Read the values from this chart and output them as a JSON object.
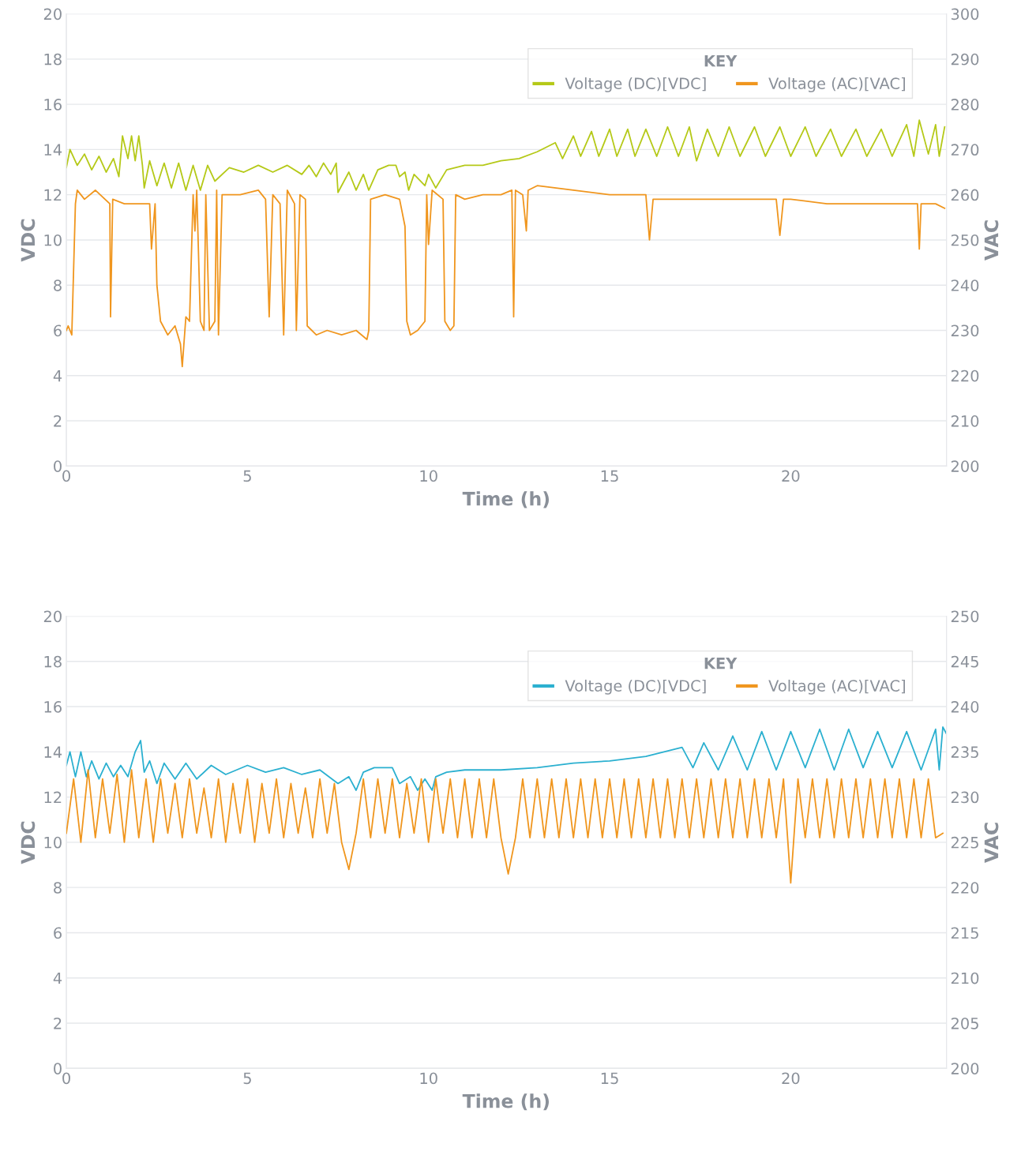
{
  "chart_data": [
    {
      "type": "line",
      "xlabel": "Time (h)",
      "ylabel": "VDC",
      "y2label": "VAC",
      "legend_title": "KEY",
      "legend": "top right",
      "grid": "y",
      "xlim": [
        0,
        24.3
      ],
      "xticks": [
        0,
        5,
        10,
        15,
        20
      ],
      "ylim": [
        0,
        20
      ],
      "yticks": [
        0,
        2,
        4,
        6,
        8,
        10,
        12,
        14,
        16,
        18,
        20
      ],
      "y2lim": [
        200,
        300
      ],
      "y2ticks": [
        200,
        210,
        220,
        230,
        240,
        250,
        260,
        270,
        280,
        290,
        300
      ],
      "series": [
        {
          "name": "Voltage (DC)[VDC]",
          "color": "#b5c918",
          "x": [
            0,
            0.1,
            0.3,
            0.5,
            0.7,
            0.9,
            1.1,
            1.3,
            1.45,
            1.55,
            1.7,
            1.8,
            1.9,
            2.0,
            2.1,
            2.15,
            2.3,
            2.5,
            2.7,
            2.9,
            3.1,
            3.3,
            3.5,
            3.7,
            3.9,
            4.1,
            4.5,
            4.9,
            5.3,
            5.7,
            6.1,
            6.5,
            6.7,
            6.9,
            7.1,
            7.3,
            7.45,
            7.5,
            7.8,
            8.0,
            8.2,
            8.35,
            8.6,
            8.9,
            9.1,
            9.2,
            9.35,
            9.45,
            9.6,
            9.9,
            10.0,
            10.2,
            10.5,
            11,
            11.5,
            12,
            12.5,
            13,
            13.5,
            13.7,
            14,
            14.2,
            14.5,
            14.7,
            15,
            15.2,
            15.5,
            15.7,
            16,
            16.3,
            16.6,
            16.9,
            17.2,
            17.4,
            17.7,
            18,
            18.3,
            18.6,
            19,
            19.3,
            19.7,
            20,
            20.4,
            20.7,
            21.1,
            21.4,
            21.8,
            22.1,
            22.5,
            22.8,
            23.2,
            23.4,
            23.55,
            23.8,
            24.0,
            24.1,
            24.25
          ],
          "values": [
            13.2,
            14.0,
            13.3,
            13.8,
            13.1,
            13.7,
            13.0,
            13.6,
            12.8,
            14.6,
            13.6,
            14.6,
            13.5,
            14.6,
            13.3,
            12.3,
            13.5,
            12.4,
            13.4,
            12.3,
            13.4,
            12.2,
            13.3,
            12.2,
            13.3,
            12.6,
            13.2,
            13.0,
            13.3,
            13.0,
            13.3,
            12.9,
            13.3,
            12.8,
            13.4,
            12.9,
            13.4,
            12.1,
            13.0,
            12.2,
            12.9,
            12.2,
            13.1,
            13.3,
            13.3,
            12.8,
            13.0,
            12.2,
            12.9,
            12.4,
            12.9,
            12.3,
            13.1,
            13.3,
            13.3,
            13.5,
            13.6,
            13.9,
            14.3,
            13.6,
            14.6,
            13.7,
            14.8,
            13.7,
            14.9,
            13.7,
            14.9,
            13.7,
            14.9,
            13.7,
            15.0,
            13.7,
            15.0,
            13.5,
            14.9,
            13.7,
            15.0,
            13.7,
            15.0,
            13.7,
            15.0,
            13.7,
            15.0,
            13.7,
            14.9,
            13.7,
            14.9,
            13.7,
            14.9,
            13.7,
            15.1,
            13.7,
            15.3,
            13.8,
            15.1,
            13.7,
            15.0
          ]
        },
        {
          "name": "Voltage (AC)[VAC]",
          "color": "#f0961e",
          "axis": "y2",
          "x": [
            0,
            0.05,
            0.15,
            0.25,
            0.3,
            0.5,
            0.8,
            1.2,
            1.22,
            1.28,
            1.6,
            2.0,
            2.3,
            2.35,
            2.45,
            2.5,
            2.6,
            2.8,
            3.0,
            3.15,
            3.2,
            3.3,
            3.4,
            3.5,
            3.55,
            3.6,
            3.7,
            3.8,
            3.85,
            3.95,
            4.1,
            4.15,
            4.2,
            4.3,
            4.8,
            5.3,
            5.5,
            5.6,
            5.7,
            5.9,
            6.0,
            6.1,
            6.3,
            6.35,
            6.45,
            6.6,
            6.65,
            6.9,
            7.2,
            7.6,
            8.0,
            8.3,
            8.35,
            8.4,
            8.8,
            9.2,
            9.35,
            9.4,
            9.5,
            9.7,
            9.9,
            9.95,
            10.0,
            10.1,
            10.4,
            10.45,
            10.6,
            10.7,
            10.75,
            11,
            11.5,
            12,
            12.3,
            12.35,
            12.4,
            12.6,
            12.7,
            12.75,
            13,
            14,
            15,
            16,
            16.1,
            16.2,
            17,
            18,
            19,
            19.6,
            19.7,
            19.8,
            20,
            21,
            22,
            23,
            23.5,
            23.55,
            23.6,
            24,
            24.25
          ],
          "values": [
            230,
            231,
            229,
            258,
            261,
            259,
            261,
            258,
            233,
            259,
            258,
            258,
            258,
            248,
            258,
            240,
            232,
            229,
            231,
            227,
            222,
            233,
            232,
            260,
            252,
            261,
            232,
            230,
            260,
            230,
            232,
            261,
            229,
            260,
            260,
            261,
            259,
            233,
            260,
            258,
            229,
            261,
            258,
            230,
            260,
            259,
            231,
            229,
            230,
            229,
            230,
            228,
            230,
            259,
            260,
            259,
            253,
            232,
            229,
            230,
            232,
            260,
            249,
            261,
            259,
            232,
            230,
            231,
            260,
            259,
            260,
            260,
            261,
            233,
            261,
            260,
            252,
            261,
            262,
            261,
            260,
            260,
            250,
            259,
            259,
            259,
            259,
            259,
            251,
            259,
            259,
            258,
            258,
            258,
            258,
            248,
            258,
            258,
            257
          ]
        }
      ]
    },
    {
      "type": "line",
      "xlabel": "Time (h)",
      "ylabel": "VDC",
      "y2label": "VAC",
      "legend_title": "KEY",
      "legend": "top right",
      "grid": "y",
      "xlim": [
        0,
        24.3
      ],
      "xticks": [
        0,
        5,
        10,
        15,
        20
      ],
      "ylim": [
        0,
        20
      ],
      "yticks": [
        0,
        2,
        4,
        6,
        8,
        10,
        12,
        14,
        16,
        18,
        20
      ],
      "y2lim": [
        200,
        250
      ],
      "y2ticks": [
        200,
        205,
        210,
        215,
        220,
        225,
        230,
        235,
        240,
        245,
        250
      ],
      "series": [
        {
          "name": "Voltage (DC)[VDC]",
          "color": "#2bb0d0",
          "x": [
            0,
            0.1,
            0.25,
            0.4,
            0.55,
            0.7,
            0.9,
            1.1,
            1.3,
            1.5,
            1.7,
            1.9,
            2.05,
            2.15,
            2.3,
            2.5,
            2.7,
            3.0,
            3.3,
            3.6,
            4,
            4.4,
            5,
            5.5,
            6,
            6.5,
            7,
            7.5,
            7.8,
            8.0,
            8.2,
            8.5,
            9.0,
            9.2,
            9.5,
            9.7,
            9.9,
            10.1,
            10.2,
            10.5,
            11,
            12,
            13,
            14,
            15,
            16,
            16.5,
            17,
            17.3,
            17.6,
            18.0,
            18.4,
            18.8,
            19.2,
            19.6,
            20,
            20.4,
            20.8,
            21.2,
            21.6,
            22,
            22.4,
            22.8,
            23.2,
            23.6,
            24.0,
            24.1,
            24.2,
            24.3
          ],
          "values": [
            13.4,
            14.0,
            12.9,
            14.0,
            12.9,
            13.6,
            12.8,
            13.5,
            12.9,
            13.4,
            12.9,
            14.0,
            14.5,
            13.1,
            13.6,
            12.6,
            13.5,
            12.8,
            13.5,
            12.8,
            13.4,
            13.0,
            13.4,
            13.1,
            13.3,
            13.0,
            13.2,
            12.6,
            12.9,
            12.3,
            13.1,
            13.3,
            13.3,
            12.6,
            12.9,
            12.3,
            12.8,
            12.3,
            12.9,
            13.1,
            13.2,
            13.2,
            13.3,
            13.5,
            13.6,
            13.8,
            14.0,
            14.2,
            13.3,
            14.4,
            13.2,
            14.7,
            13.2,
            14.9,
            13.2,
            14.9,
            13.3,
            15.0,
            13.2,
            15.0,
            13.3,
            14.9,
            13.3,
            14.9,
            13.2,
            15.0,
            13.2,
            15.1,
            14.8
          ]
        },
        {
          "name": "Voltage (AC)[VAC]",
          "color": "#f0961e",
          "axis": "y2",
          "x": [
            0,
            0.2,
            0.4,
            0.6,
            0.8,
            1,
            1.2,
            1.4,
            1.6,
            1.8,
            2,
            2.2,
            2.4,
            2.6,
            2.8,
            3,
            3.2,
            3.4,
            3.6,
            3.8,
            4,
            4.2,
            4.4,
            4.6,
            4.8,
            5,
            5.2,
            5.4,
            5.6,
            5.8,
            6,
            6.2,
            6.4,
            6.6,
            6.8,
            7,
            7.2,
            7.4,
            7.6,
            7.8,
            8,
            8.2,
            8.4,
            8.6,
            8.8,
            9,
            9.2,
            9.4,
            9.6,
            9.8,
            10,
            10.2,
            10.4,
            10.6,
            10.8,
            11,
            11.2,
            11.4,
            11.6,
            11.8,
            12,
            12.2,
            12.4,
            12.6,
            12.8,
            13,
            13.2,
            13.4,
            13.6,
            13.8,
            14,
            14.2,
            14.4,
            14.6,
            14.8,
            15,
            15.2,
            15.4,
            15.6,
            15.8,
            16,
            16.2,
            16.4,
            16.6,
            16.8,
            17,
            17.2,
            17.4,
            17.6,
            17.8,
            18,
            18.2,
            18.4,
            18.6,
            18.8,
            19,
            19.2,
            19.4,
            19.6,
            19.8,
            20,
            20.2,
            20.4,
            20.6,
            20.8,
            21,
            21.2,
            21.4,
            21.6,
            21.8,
            22,
            22.2,
            22.4,
            22.6,
            22.8,
            23,
            23.2,
            23.4,
            23.6,
            23.8,
            24,
            24.2
          ],
          "values": [
            226,
            232,
            225,
            233,
            225.5,
            232,
            226,
            232.5,
            225,
            233,
            225.5,
            232,
            225,
            232,
            226,
            231.5,
            225.5,
            232,
            226,
            231,
            225.5,
            232,
            225,
            231.5,
            226,
            232,
            225,
            231.5,
            226,
            232,
            225.5,
            231.5,
            226,
            231,
            225.5,
            232,
            226,
            231.5,
            225,
            222,
            226,
            232,
            225.5,
            232,
            226,
            232,
            225.5,
            231.5,
            226,
            232,
            225,
            232,
            226,
            232,
            225.5,
            232,
            225.5,
            232,
            225.5,
            232,
            225.5,
            221.5,
            225.5,
            232,
            225.5,
            232,
            225.5,
            232,
            225.5,
            232,
            225.5,
            232,
            225.5,
            232,
            225.5,
            232,
            225.5,
            232,
            225.5,
            232,
            225.5,
            232,
            225.5,
            232,
            225.5,
            232,
            225.5,
            232,
            225.5,
            232,
            225.5,
            232,
            225.5,
            232,
            225.5,
            232,
            225.5,
            232,
            225.5,
            232,
            220.5,
            232,
            225.5,
            232,
            225.5,
            232,
            225.5,
            232,
            225.5,
            232,
            225.5,
            232,
            225.5,
            232,
            225.5,
            232,
            225.5,
            232,
            225.5,
            232,
            225.5,
            226
          ]
        }
      ]
    }
  ]
}
